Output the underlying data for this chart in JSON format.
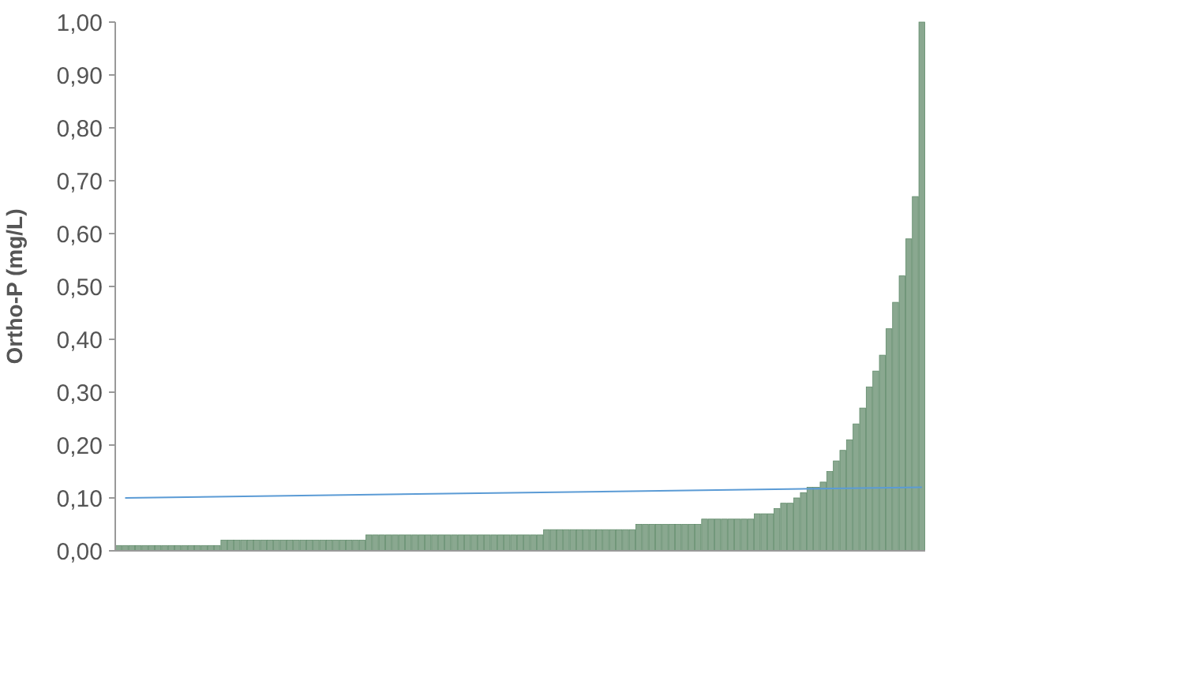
{
  "chart_data": {
    "type": "bar",
    "ylabel": "Ortho-P (mg/L)",
    "categories": [
      null,
      null,
      null,
      null,
      null,
      null,
      null,
      null,
      null,
      null,
      null,
      null,
      null,
      null,
      null,
      null,
      null,
      null,
      null,
      null,
      null,
      null,
      null,
      null,
      null,
      null,
      null,
      null,
      null,
      null,
      null,
      null,
      null,
      null,
      null,
      null,
      null,
      null,
      null,
      null,
      null,
      null,
      null,
      null,
      null,
      null,
      null,
      null,
      null,
      null,
      null,
      null,
      null,
      null,
      null,
      null,
      null,
      null,
      null,
      null,
      null,
      null,
      null,
      null,
      null,
      null,
      null,
      null,
      null,
      null,
      null,
      null,
      null,
      null,
      null,
      null,
      null,
      null,
      null,
      null,
      null,
      null,
      null,
      null,
      null,
      null,
      null,
      null,
      null,
      null,
      null,
      null,
      null,
      null,
      null,
      null,
      null,
      null,
      null,
      null,
      null,
      null,
      null,
      null,
      null,
      null,
      null,
      null,
      null,
      null,
      null,
      null,
      null,
      null,
      null,
      null,
      null,
      null,
      null,
      null,
      null,
      null,
      null
    ],
    "series": [
      {
        "color": "#8aa890",
        "values": [
          0.01,
          0.01,
          0.01,
          0.01,
          0.01,
          0.01,
          0.01,
          0.01,
          0.01,
          0.01,
          0.01,
          0.01,
          0.01,
          0.01,
          0.01,
          0.01,
          0.02,
          0.02,
          0.02,
          0.02,
          0.02,
          0.02,
          0.02,
          0.02,
          0.02,
          0.02,
          0.02,
          0.02,
          0.02,
          0.02,
          0.02,
          0.02,
          0.02,
          0.02,
          0.02,
          0.02,
          0.02,
          0.02,
          0.03,
          0.03,
          0.03,
          0.03,
          0.03,
          0.03,
          0.03,
          0.03,
          0.03,
          0.03,
          0.03,
          0.03,
          0.03,
          0.03,
          0.03,
          0.03,
          0.03,
          0.03,
          0.03,
          0.03,
          0.03,
          0.03,
          0.03,
          0.03,
          0.03,
          0.03,
          0.03,
          0.04,
          0.04,
          0.04,
          0.04,
          0.04,
          0.04,
          0.04,
          0.04,
          0.04,
          0.04,
          0.04,
          0.04,
          0.04,
          0.04,
          0.05,
          0.05,
          0.05,
          0.05,
          0.05,
          0.05,
          0.05,
          0.05,
          0.05,
          0.05,
          0.06,
          0.06,
          0.06,
          0.06,
          0.06,
          0.06,
          0.06,
          0.06,
          0.07,
          0.07,
          0.07,
          0.08,
          0.09,
          0.09,
          0.1,
          0.11,
          0.12,
          0.12,
          0.13,
          0.15,
          0.17,
          0.19,
          0.21,
          0.24,
          0.27,
          0.31,
          0.34,
          0.37,
          0.42,
          0.47,
          0.52,
          0.59,
          0.67,
          1.0
        ]
      },
      {
        "type": "line",
        "color": "#5b9bd5",
        "values": [
          null,
          0.1,
          null,
          null,
          null,
          null,
          null,
          null,
          null,
          null,
          null,
          null,
          null,
          null,
          null,
          null,
          null,
          null,
          null,
          null,
          null,
          null,
          null,
          null,
          null,
          null,
          null,
          null,
          null,
          null,
          null,
          null,
          null,
          null,
          null,
          null,
          null,
          null,
          null,
          null,
          null,
          null,
          null,
          null,
          null,
          null,
          null,
          null,
          null,
          null,
          null,
          null,
          null,
          null,
          null,
          null,
          null,
          null,
          null,
          null,
          null,
          null,
          null,
          null,
          null,
          null,
          null,
          null,
          null,
          null,
          null,
          null,
          null,
          null,
          null,
          null,
          null,
          null,
          null,
          null,
          null,
          null,
          null,
          null,
          null,
          null,
          null,
          null,
          null,
          null,
          null,
          null,
          null,
          null,
          null,
          null,
          null,
          null,
          null,
          null,
          null,
          null,
          null,
          null,
          null,
          null,
          null,
          null,
          null,
          null,
          null,
          null,
          null,
          null,
          null,
          null,
          null,
          null,
          null,
          null,
          null,
          null,
          0.12
        ]
      }
    ],
    "ylim": [
      0,
      1
    ],
    "yticks": [
      {
        "value": 0,
        "label": "0,00"
      },
      {
        "value": 0.1,
        "label": "0,10"
      },
      {
        "value": 0.2,
        "label": "0,20"
      },
      {
        "value": 0.3,
        "label": "0,30"
      },
      {
        "value": 0.4,
        "label": "0,40"
      },
      {
        "value": 0.5,
        "label": "0,50"
      },
      {
        "value": 0.6,
        "label": "0,60"
      },
      {
        "value": 0.7,
        "label": "0,70"
      },
      {
        "value": 0.8,
        "label": "0,80"
      },
      {
        "value": 0.9,
        "label": "0,90"
      },
      {
        "value": 1,
        "label": "1,00"
      }
    ],
    "grid": false
  }
}
